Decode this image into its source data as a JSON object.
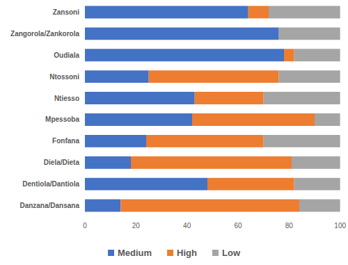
{
  "chart_data": {
    "type": "bar",
    "orientation": "horizontal",
    "stacked": true,
    "categories": [
      "Danzana/Dansana",
      "Dentiola/Dantiola",
      "Diela/Dieta",
      "Fonfana",
      "Mpessoba",
      "Ntiesso",
      "Ntossoni",
      "Oudiala",
      "Zangorola/Zankorola",
      "Zansoni"
    ],
    "series": [
      {
        "name": "Medium",
        "color": "#4472c4",
        "values": [
          14,
          48,
          18,
          24,
          42,
          43,
          25,
          78,
          76,
          64
        ]
      },
      {
        "name": "High",
        "color": "#ed7d31",
        "values": [
          70,
          34,
          63,
          46,
          48,
          27,
          51,
          4,
          0,
          8
        ]
      },
      {
        "name": "Low",
        "color": "#a5a5a5",
        "values": [
          16,
          18,
          19,
          30,
          10,
          30,
          24,
          18,
          24,
          28
        ]
      }
    ],
    "xlim": [
      0,
      100
    ],
    "xticks": [
      0,
      20,
      40,
      60,
      80,
      100
    ],
    "grid": false,
    "legend": "bottom"
  }
}
